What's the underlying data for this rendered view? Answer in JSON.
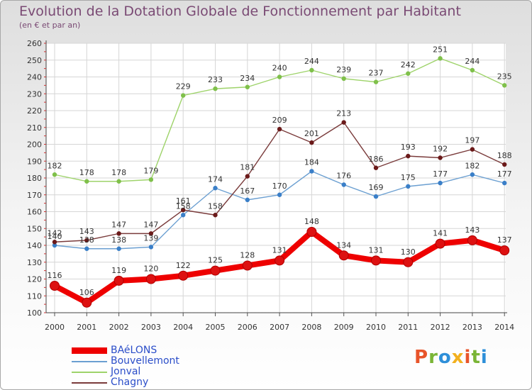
{
  "header": {
    "title": "Evolution de la Dotation Globale de Fonctionnement par Habitant",
    "subtitle": "(en € et par an)"
  },
  "logo": {
    "letters": [
      "P",
      "r",
      "o",
      "x",
      "i",
      "t",
      "i"
    ],
    "colors": [
      "#e8542a",
      "#7ab536",
      "#2e8fd9",
      "#f2b01e",
      "#e8542a",
      "#7ab536",
      "#2e8fd9"
    ]
  },
  "chart_data": {
    "type": "line",
    "title": "Evolution de la Dotation Globale de Fonctionnement par Habitant",
    "subtitle": "(en € et par an)",
    "xlabel": "",
    "ylabel": "",
    "ylim": [
      100,
      260
    ],
    "yticks": [
      100,
      110,
      120,
      130,
      140,
      150,
      160,
      170,
      180,
      190,
      200,
      210,
      220,
      230,
      240,
      250,
      260
    ],
    "grid": true,
    "legend_position": "bottom-left",
    "x": [
      "2000",
      "2001",
      "2002",
      "2003",
      "2004",
      "2005",
      "2006",
      "2007",
      "2008",
      "2009",
      "2010",
      "2011",
      "2012",
      "2013",
      "2014"
    ],
    "series": [
      {
        "name": "BAéLONS",
        "color": "#ee0000",
        "dot": "#dd1111",
        "thick": true,
        "values": [
          116,
          106,
          119,
          120,
          122,
          125,
          128,
          131,
          148,
          134,
          131,
          130,
          141,
          143,
          137
        ]
      },
      {
        "name": "Bouvellemont",
        "color": "#6b9fd1",
        "dot": "#3a7fc8",
        "thick": false,
        "values": [
          140,
          138,
          138,
          139,
          158,
          174,
          167,
          170,
          184,
          176,
          169,
          175,
          177,
          182,
          177
        ]
      },
      {
        "name": "Jonval",
        "color": "#9ed36a",
        "dot": "#7fc04a",
        "thick": false,
        "values": [
          182,
          178,
          178,
          179,
          229,
          233,
          234,
          240,
          244,
          239,
          237,
          242,
          251,
          244,
          235
        ]
      },
      {
        "name": "Chagny",
        "color": "#7a3b3b",
        "dot": "#6b1a1a",
        "thick": false,
        "values": [
          142,
          143,
          147,
          147,
          161,
          158,
          181,
          209,
          201,
          213,
          186,
          193,
          192,
          197,
          188
        ]
      }
    ]
  }
}
